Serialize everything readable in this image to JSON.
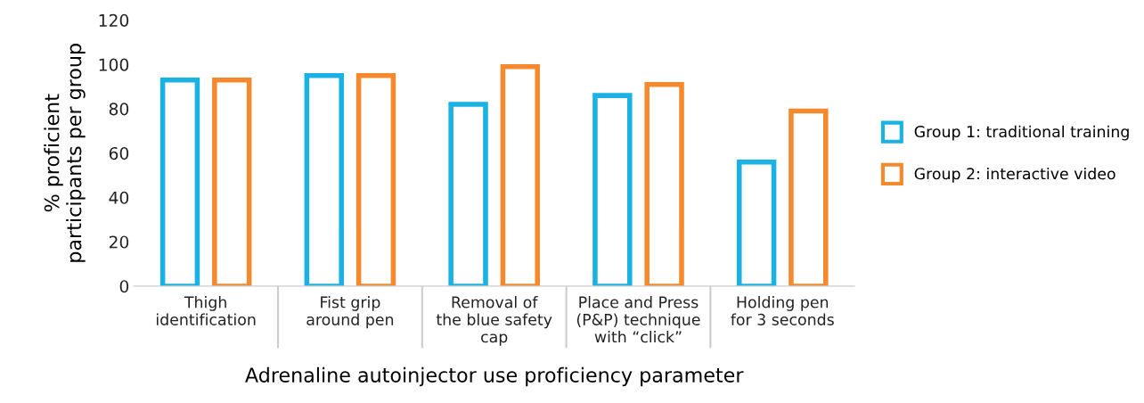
{
  "chart_data": {
    "type": "bar",
    "xlabel": "Adrenaline autoinjector use proficiency parameter",
    "ylabel": "% proficient\nparticipants per group",
    "categories": [
      "Thigh\nidentification",
      "Fist grip\naround pen",
      "Removal of\nthe blue safety\ncap",
      "Place and Press\n(P&P) technique\nwith “click”",
      "Holding pen\nfor 3 seconds"
    ],
    "series": [
      {
        "name": "Group 1: traditional training",
        "color": "#1ab1e3",
        "values": [
          93,
          95,
          82,
          86,
          56
        ]
      },
      {
        "name": "Group 2: interactive video",
        "color": "#f5892e",
        "values": [
          93,
          95,
          99,
          91,
          79
        ]
      }
    ],
    "ylim": [
      0,
      120
    ],
    "yticks": [
      0,
      20,
      40,
      60,
      80,
      100,
      120
    ],
    "grid": false,
    "legend": "right"
  }
}
